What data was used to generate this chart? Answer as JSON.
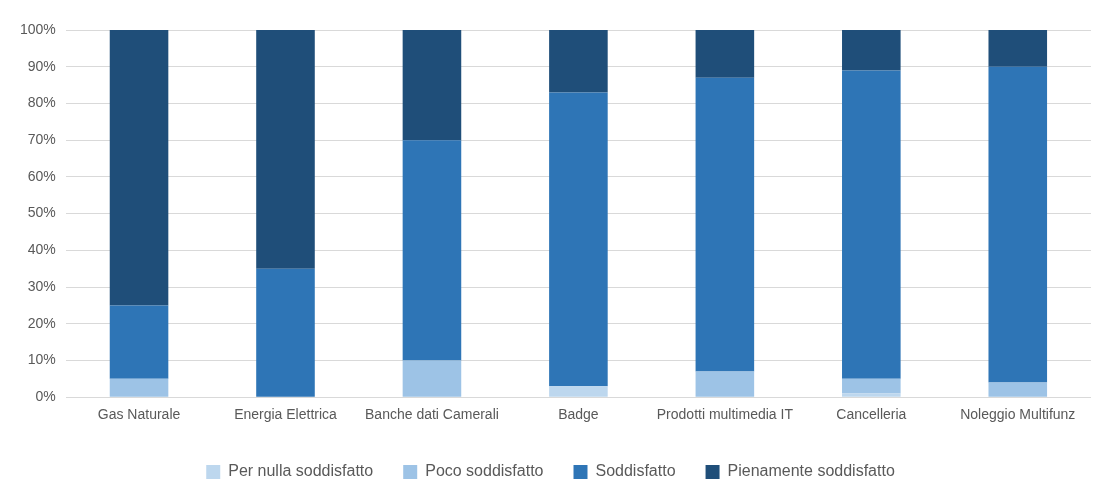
{
  "chart_data": {
    "type": "bar",
    "stacked": true,
    "categories": [
      "Gas Naturale",
      "Energia Elettrica",
      "Banche dati Camerali",
      "Badge",
      "Prodotti multimedia IT",
      "Cancelleria",
      "Noleggio Multifunz"
    ],
    "series": [
      {
        "name": "Per nulla soddisfatto",
        "color": "#bdd7ee",
        "values": [
          0,
          0,
          0,
          3,
          0,
          1,
          0
        ]
      },
      {
        "name": "Poco soddisfatto",
        "color": "#9dc3e6",
        "values": [
          5,
          0,
          10,
          0,
          7,
          4,
          4
        ]
      },
      {
        "name": "Soddisfatto",
        "color": "#2e75b6",
        "values": [
          20,
          35,
          60,
          80,
          80,
          84,
          86
        ]
      },
      {
        "name": "Pienamente soddisfatto",
        "color": "#1f4e79",
        "values": [
          75,
          65,
          30,
          17,
          13,
          11,
          10
        ]
      }
    ],
    "ylim": [
      0,
      100
    ],
    "yticks": [
      {
        "value": 0,
        "label": "0%"
      },
      {
        "value": 10,
        "label": "10%"
      },
      {
        "value": 20,
        "label": "20%"
      },
      {
        "value": 30,
        "label": "30%"
      },
      {
        "value": 40,
        "label": "40%"
      },
      {
        "value": 50,
        "label": "50%"
      },
      {
        "value": 60,
        "label": "60%"
      },
      {
        "value": 70,
        "label": "70%"
      },
      {
        "value": 80,
        "label": "80%"
      },
      {
        "value": 90,
        "label": "90%"
      },
      {
        "value": 100,
        "label": "100%"
      }
    ],
    "grid": "y",
    "legend": "bottom"
  }
}
